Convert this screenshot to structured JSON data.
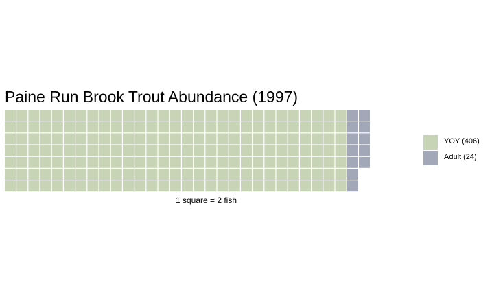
{
  "chart_data": {
    "type": "waffle",
    "title": "Paine Run Brook Trout Abundance (1997)",
    "caption": "1 square = 2 fish",
    "rows": 7,
    "fish_per_square": 2,
    "series": [
      {
        "name": "YOY (406)",
        "value": 406,
        "squares": 203,
        "color": "#c7d4b6"
      },
      {
        "name": "Adult (24)",
        "value": 24,
        "squares": 12,
        "color": "#a3a8b9"
      }
    ],
    "legend_position": "right"
  }
}
